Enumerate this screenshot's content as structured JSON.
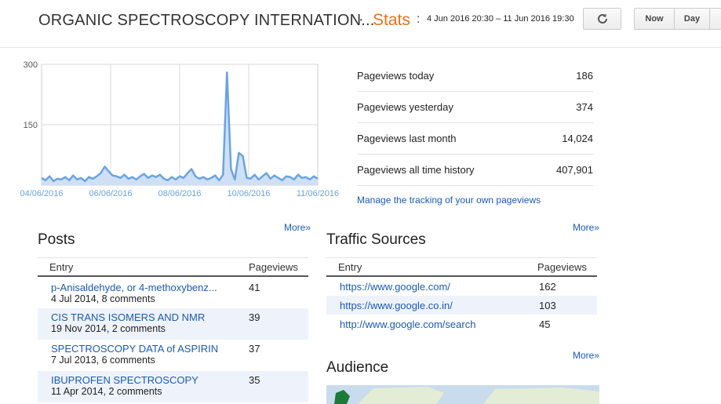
{
  "header": {
    "blog_title": "ORGANIC SPECTROSCOPY INTERNATION...",
    "separator": "·",
    "stats_label": "Stats",
    "colon": ":",
    "date_range": "4 Jun 2016 20:30 – 11 Jun 2016 19:30",
    "refresh_icon": "refresh-icon",
    "buttons": {
      "now": "Now",
      "day": "Day"
    }
  },
  "chart_data": {
    "type": "area",
    "ylim": [
      0,
      300
    ],
    "y_ticks": [
      "300",
      "150"
    ],
    "x_tick_labels": [
      "04/06/2016",
      "06/06/2016",
      "08/06/2016",
      "10/06/2016",
      "11/06/2016"
    ],
    "series_color": "#6aa3e3",
    "values": [
      18,
      12,
      22,
      10,
      16,
      14,
      20,
      12,
      24,
      14,
      18,
      10,
      20,
      16,
      22,
      30,
      46,
      34,
      24,
      22,
      18,
      26,
      16,
      20,
      14,
      22,
      28,
      18,
      24,
      20,
      26,
      16,
      12,
      20,
      14,
      22,
      18,
      30,
      40,
      22,
      16,
      20,
      14,
      18,
      24,
      12,
      26,
      280,
      40,
      14,
      80,
      72,
      18,
      16,
      26,
      14,
      22,
      30,
      16,
      24,
      18,
      12,
      22,
      20,
      14,
      26,
      18,
      20,
      14,
      22,
      16
    ]
  },
  "metrics": [
    {
      "label": "Pageviews today",
      "value": "186"
    },
    {
      "label": "Pageviews yesterday",
      "value": "374"
    },
    {
      "label": "Pageviews last month",
      "value": "14,024"
    },
    {
      "label": "Pageviews all time history",
      "value": "407,901"
    }
  ],
  "manage_link": "Manage the tracking of your own pageviews",
  "more_label": "More»",
  "posts": {
    "title": "Posts",
    "col_entry": "Entry",
    "col_pageviews": "Pageviews",
    "rows": [
      {
        "title": "p-Anisaldehyde, or 4-methoxybenz...",
        "meta": "4 Jul 2014, 8 comments",
        "views": "41"
      },
      {
        "title": "CIS TRANS ISOMERS AND NMR",
        "meta": "19 Nov 2014, 2 comments",
        "views": "39"
      },
      {
        "title": "SPECTROSCOPY DATA of ASPIRIN",
        "meta": "7 Jul 2013, 6 comments",
        "views": "37"
      },
      {
        "title": "IBUPROFEN SPECTROSCOPY",
        "meta": "11 Apr 2014, 2 comments",
        "views": "35"
      }
    ]
  },
  "traffic": {
    "title": "Traffic Sources",
    "col_entry": "Entry",
    "col_pageviews": "Pageviews",
    "rows": [
      {
        "url": "https://www.google.com/",
        "views": "162"
      },
      {
        "url": "https://www.google.co.in/",
        "views": "103"
      },
      {
        "url": "http://www.google.com/search",
        "views": "45"
      }
    ]
  },
  "audience": {
    "title": "Audience"
  }
}
